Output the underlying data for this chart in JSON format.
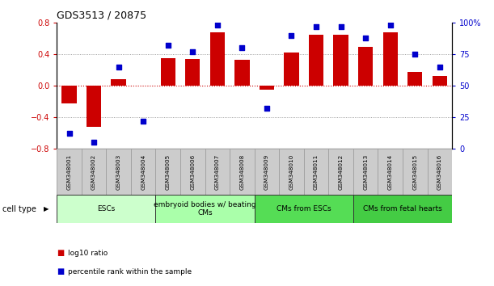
{
  "title": "GDS3513 / 20875",
  "samples": [
    "GSM348001",
    "GSM348002",
    "GSM348003",
    "GSM348004",
    "GSM348005",
    "GSM348006",
    "GSM348007",
    "GSM348008",
    "GSM348009",
    "GSM348010",
    "GSM348011",
    "GSM348012",
    "GSM348013",
    "GSM348014",
    "GSM348015",
    "GSM348016"
  ],
  "log10_ratio": [
    -0.22,
    -0.52,
    0.08,
    0.0,
    0.35,
    0.34,
    0.68,
    0.33,
    -0.05,
    0.42,
    0.65,
    0.65,
    0.49,
    0.68,
    0.18,
    0.12
  ],
  "percentile_rank": [
    12,
    5,
    65,
    22,
    82,
    77,
    98,
    80,
    32,
    90,
    97,
    97,
    88,
    98,
    75,
    65
  ],
  "bar_color": "#cc0000",
  "dot_color": "#0000cc",
  "ylim_left": [
    -0.8,
    0.8
  ],
  "ylim_right": [
    0,
    100
  ],
  "yticks_left": [
    -0.8,
    -0.4,
    0.0,
    0.4,
    0.8
  ],
  "yticks_right": [
    0,
    25,
    50,
    75,
    100
  ],
  "ytick_labels_right": [
    "0",
    "25",
    "50",
    "75",
    "100%"
  ],
  "cell_type_groups": [
    {
      "label": "ESCs",
      "start": 0,
      "end": 3,
      "color": "#ccffcc"
    },
    {
      "label": "embryoid bodies w/ beating\nCMs",
      "start": 4,
      "end": 7,
      "color": "#aaffaa"
    },
    {
      "label": "CMs from ESCs",
      "start": 8,
      "end": 11,
      "color": "#55dd55"
    },
    {
      "label": "CMs from fetal hearts",
      "start": 12,
      "end": 15,
      "color": "#44cc44"
    }
  ],
  "cell_type_label": "cell type",
  "legend_items": [
    {
      "label": "log10 ratio",
      "color": "#cc0000"
    },
    {
      "label": "percentile rank within the sample",
      "color": "#0000cc"
    }
  ],
  "hline_color": "#cc0000",
  "dotted_color": "#888888",
  "background_color": "#ffffff",
  "sample_box_color": "#cccccc"
}
